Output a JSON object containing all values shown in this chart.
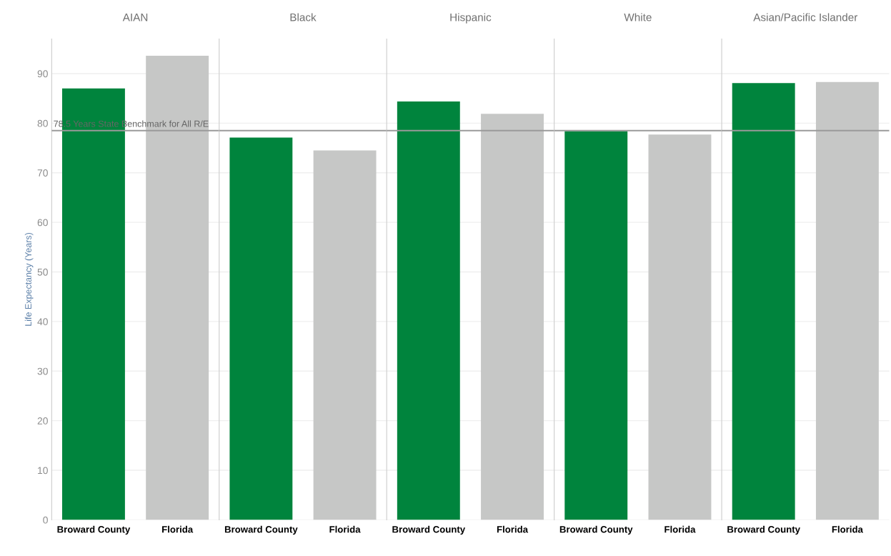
{
  "chart_data": [
    {
      "type": "bar",
      "title": "AIAN",
      "ylabel": "Life Expectancy (Years)",
      "categories": [
        "Broward County",
        "Florida"
      ],
      "values": [
        87.0,
        93.6
      ],
      "colors": [
        "#00843d",
        "#c6c7c6"
      ],
      "ylim": [
        0,
        97
      ],
      "yticks": [
        0,
        10,
        20,
        30,
        40,
        50,
        60,
        70,
        80,
        90
      ],
      "grid": "y",
      "ref_lines": [
        {
          "axis": "y",
          "value": 78.5,
          "label": "78.5 Years State Benchmark for All R/E",
          "color": "#9a9a9a"
        }
      ]
    },
    {
      "type": "bar",
      "title": "Black",
      "categories": [
        "Broward County",
        "Florida"
      ],
      "values": [
        77.1,
        74.5
      ],
      "colors": [
        "#00843d",
        "#c6c7c6"
      ],
      "ylim": [
        0,
        97
      ],
      "yticks": [
        0,
        10,
        20,
        30,
        40,
        50,
        60,
        70,
        80,
        90
      ],
      "grid": "y",
      "tick_labels": "x",
      "ref_lines": [
        {
          "axis": "y",
          "value": 78.5,
          "color": "#9a9a9a"
        }
      ]
    },
    {
      "type": "bar",
      "title": "Hispanic",
      "categories": [
        "Broward County",
        "Florida"
      ],
      "values": [
        84.4,
        81.9
      ],
      "colors": [
        "#00843d",
        "#c6c7c6"
      ],
      "ylim": [
        0,
        97
      ],
      "yticks": [
        0,
        10,
        20,
        30,
        40,
        50,
        60,
        70,
        80,
        90
      ],
      "grid": "y",
      "tick_labels": "x",
      "ref_lines": [
        {
          "axis": "y",
          "value": 78.5,
          "color": "#9a9a9a"
        }
      ]
    },
    {
      "type": "bar",
      "title": "White",
      "categories": [
        "Broward County",
        "Florida"
      ],
      "values": [
        78.4,
        77.7
      ],
      "colors": [
        "#00843d",
        "#c6c7c6"
      ],
      "ylim": [
        0,
        97
      ],
      "yticks": [
        0,
        10,
        20,
        30,
        40,
        50,
        60,
        70,
        80,
        90
      ],
      "grid": "y",
      "tick_labels": "x",
      "ref_lines": [
        {
          "axis": "y",
          "value": 78.5,
          "color": "#9a9a9a"
        }
      ]
    },
    {
      "type": "bar",
      "title": "Asian/Pacific Islander",
      "categories": [
        "Broward County",
        "Florida"
      ],
      "values": [
        88.1,
        88.3
      ],
      "colors": [
        "#00843d",
        "#c6c7c6"
      ],
      "ylim": [
        0,
        97
      ],
      "yticks": [
        0,
        10,
        20,
        30,
        40,
        50,
        60,
        70,
        80,
        90
      ],
      "grid": "y",
      "tick_labels": "x",
      "ref_lines": [
        {
          "axis": "y",
          "value": 78.5,
          "color": "#9a9a9a"
        }
      ]
    }
  ]
}
